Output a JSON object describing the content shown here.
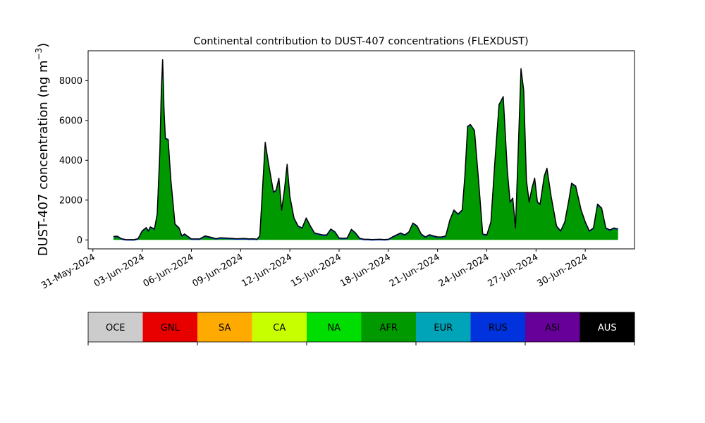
{
  "chart_data": {
    "type": "area",
    "title": "Continental contribution to DUST-407 concentrations (FLEXDUST)",
    "ylabel": "DUST-407 concentration (ng m",
    "ylabel_sup": "−3",
    "ylabel_close": ")",
    "xlim": [
      "2024-05-30T17:00",
      "2024-07-03T00:00"
    ],
    "ylim": [
      -450,
      9500
    ],
    "grid": false,
    "x_ticks": [
      "2024-05-31",
      "2024-06-03",
      "2024-06-06",
      "2024-06-09",
      "2024-06-12",
      "2024-06-15",
      "2024-06-18",
      "2024-06-21",
      "2024-06-24",
      "2024-06-27",
      "2024-06-30"
    ],
    "x_tick_labels": [
      "31-May-2024",
      "03-Jun-2024",
      "06-Jun-2024",
      "09-Jun-2024",
      "12-Jun-2024",
      "15-Jun-2024",
      "18-Jun-2024",
      "21-Jun-2024",
      "24-Jun-2024",
      "27-Jun-2024",
      "30-Jun-2024"
    ],
    "y_ticks": [
      0,
      2000,
      4000,
      6000,
      8000
    ],
    "y_tick_labels": [
      "0",
      "2000",
      "4000",
      "6000",
      "8000"
    ],
    "series_total_color": "#000000",
    "series_total": [
      [
        "2024-06-01T06:00",
        180
      ],
      [
        "2024-06-01T12:00",
        185
      ],
      [
        "2024-06-01T18:00",
        60
      ],
      [
        "2024-06-02T00:00",
        20
      ],
      [
        "2024-06-02T12:00",
        15
      ],
      [
        "2024-06-02T18:00",
        60
      ],
      [
        "2024-06-03T00:00",
        450
      ],
      [
        "2024-06-03T06:00",
        620
      ],
      [
        "2024-06-03T09:00",
        450
      ],
      [
        "2024-06-03T12:00",
        650
      ],
      [
        "2024-06-03T18:00",
        550
      ],
      [
        "2024-06-03T22:00",
        1300
      ],
      [
        "2024-06-04T02:00",
        4500
      ],
      [
        "2024-06-04T04:00",
        7500
      ],
      [
        "2024-06-04T06:00",
        9050
      ],
      [
        "2024-06-04T08:00",
        6500
      ],
      [
        "2024-06-04T10:00",
        5100
      ],
      [
        "2024-06-04T14:00",
        5050
      ],
      [
        "2024-06-04T18:00",
        3000
      ],
      [
        "2024-06-05T00:00",
        800
      ],
      [
        "2024-06-05T06:00",
        600
      ],
      [
        "2024-06-05T10:00",
        200
      ],
      [
        "2024-06-05T14:00",
        300
      ],
      [
        "2024-06-05T20:00",
        150
      ],
      [
        "2024-06-06T00:00",
        50
      ],
      [
        "2024-06-06T12:00",
        50
      ],
      [
        "2024-06-06T20:00",
        200
      ],
      [
        "2024-06-07T06:00",
        120
      ],
      [
        "2024-06-07T12:00",
        60
      ],
      [
        "2024-06-07T18:00",
        110
      ],
      [
        "2024-06-08T06:00",
        90
      ],
      [
        "2024-06-08T18:00",
        60
      ],
      [
        "2024-06-09T06:00",
        70
      ],
      [
        "2024-06-09T12:00",
        50
      ],
      [
        "2024-06-09T18:00",
        60
      ],
      [
        "2024-06-10T00:00",
        40
      ],
      [
        "2024-06-10T04:00",
        200
      ],
      [
        "2024-06-10T08:00",
        2500
      ],
      [
        "2024-06-10T12:00",
        4900
      ],
      [
        "2024-06-10T16:00",
        4000
      ],
      [
        "2024-06-10T20:00",
        3200
      ],
      [
        "2024-06-11T00:00",
        2400
      ],
      [
        "2024-06-11T04:00",
        2500
      ],
      [
        "2024-06-11T08:00",
        3100
      ],
      [
        "2024-06-11T12:00",
        1500
      ],
      [
        "2024-06-11T16:00",
        2500
      ],
      [
        "2024-06-11T20:00",
        3800
      ],
      [
        "2024-06-12T00:00",
        2200
      ],
      [
        "2024-06-12T06:00",
        1100
      ],
      [
        "2024-06-12T12:00",
        700
      ],
      [
        "2024-06-12T18:00",
        600
      ],
      [
        "2024-06-13T00:00",
        1100
      ],
      [
        "2024-06-13T06:00",
        700
      ],
      [
        "2024-06-13T12:00",
        350
      ],
      [
        "2024-06-13T18:00",
        300
      ],
      [
        "2024-06-14T00:00",
        250
      ],
      [
        "2024-06-14T06:00",
        250
      ],
      [
        "2024-06-14T12:00",
        550
      ],
      [
        "2024-06-14T18:00",
        400
      ],
      [
        "2024-06-15T00:00",
        100
      ],
      [
        "2024-06-15T06:00",
        80
      ],
      [
        "2024-06-15T12:00",
        100
      ],
      [
        "2024-06-15T18:00",
        530
      ],
      [
        "2024-06-16T00:00",
        350
      ],
      [
        "2024-06-16T06:00",
        80
      ],
      [
        "2024-06-16T12:00",
        40
      ],
      [
        "2024-06-16T18:00",
        30
      ],
      [
        "2024-06-17T00:00",
        20
      ],
      [
        "2024-06-17T12:00",
        30
      ],
      [
        "2024-06-17T18:00",
        20
      ],
      [
        "2024-06-18T00:00",
        30
      ],
      [
        "2024-06-18T06:00",
        150
      ],
      [
        "2024-06-18T12:00",
        250
      ],
      [
        "2024-06-18T18:00",
        350
      ],
      [
        "2024-06-19T00:00",
        250
      ],
      [
        "2024-06-19T06:00",
        400
      ],
      [
        "2024-06-19T12:00",
        850
      ],
      [
        "2024-06-19T18:00",
        700
      ],
      [
        "2024-06-20T00:00",
        300
      ],
      [
        "2024-06-20T06:00",
        150
      ],
      [
        "2024-06-20T12:00",
        260
      ],
      [
        "2024-06-20T18:00",
        200
      ],
      [
        "2024-06-21T00:00",
        150
      ],
      [
        "2024-06-21T06:00",
        150
      ],
      [
        "2024-06-21T12:00",
        200
      ],
      [
        "2024-06-21T18:00",
        1000
      ],
      [
        "2024-06-22T00:00",
        1500
      ],
      [
        "2024-06-22T06:00",
        1300
      ],
      [
        "2024-06-22T12:00",
        1500
      ],
      [
        "2024-06-22T16:00",
        3200
      ],
      [
        "2024-06-22T20:00",
        5700
      ],
      [
        "2024-06-23T00:00",
        5800
      ],
      [
        "2024-06-23T06:00",
        5500
      ],
      [
        "2024-06-23T12:00",
        3000
      ],
      [
        "2024-06-23T18:00",
        300
      ],
      [
        "2024-06-24T00:00",
        250
      ],
      [
        "2024-06-24T06:00",
        900
      ],
      [
        "2024-06-24T12:00",
        4000
      ],
      [
        "2024-06-24T18:00",
        6800
      ],
      [
        "2024-06-25T00:00",
        7200
      ],
      [
        "2024-06-25T06:00",
        3500
      ],
      [
        "2024-06-25T10:00",
        1900
      ],
      [
        "2024-06-25T14:00",
        2100
      ],
      [
        "2024-06-25T18:00",
        600
      ],
      [
        "2024-06-25T22:00",
        4500
      ],
      [
        "2024-06-26T02:00",
        8600
      ],
      [
        "2024-06-26T06:00",
        7500
      ],
      [
        "2024-06-26T10:00",
        3000
      ],
      [
        "2024-06-26T14:00",
        1900
      ],
      [
        "2024-06-26T18:00",
        2600
      ],
      [
        "2024-06-26T22:00",
        3100
      ],
      [
        "2024-06-27T02:00",
        1900
      ],
      [
        "2024-06-27T06:00",
        1800
      ],
      [
        "2024-06-27T12:00",
        3200
      ],
      [
        "2024-06-27T16:00",
        3600
      ],
      [
        "2024-06-27T22:00",
        2200
      ],
      [
        "2024-06-28T06:00",
        700
      ],
      [
        "2024-06-28T12:00",
        450
      ],
      [
        "2024-06-28T18:00",
        900
      ],
      [
        "2024-06-29T00:00",
        2000
      ],
      [
        "2024-06-29T04:00",
        2850
      ],
      [
        "2024-06-29T10:00",
        2700
      ],
      [
        "2024-06-29T18:00",
        1500
      ],
      [
        "2024-06-30T00:00",
        900
      ],
      [
        "2024-06-30T06:00",
        450
      ],
      [
        "2024-06-30T12:00",
        600
      ],
      [
        "2024-06-30T18:00",
        1800
      ],
      [
        "2024-07-01T00:00",
        1600
      ],
      [
        "2024-07-01T06:00",
        600
      ],
      [
        "2024-07-01T12:00",
        500
      ],
      [
        "2024-07-01T18:00",
        600
      ],
      [
        "2024-07-02T00:00",
        550
      ]
    ],
    "legend_placement": "bottom",
    "legend": [
      {
        "label": "OCE",
        "color": "#cccccc",
        "text_color": "#000000"
      },
      {
        "label": "GNL",
        "color": "#e80000",
        "text_color": "#000000"
      },
      {
        "label": "SA",
        "color": "#ffaa00",
        "text_color": "#000000"
      },
      {
        "label": "CA",
        "color": "#c8ff00",
        "text_color": "#000000"
      },
      {
        "label": "NA",
        "color": "#00dd00",
        "text_color": "#000000"
      },
      {
        "label": "AFR",
        "color": "#009900",
        "text_color": "#000000"
      },
      {
        "label": "EUR",
        "color": "#00a4b8",
        "text_color": "#000000"
      },
      {
        "label": "RUS",
        "color": "#0033dd",
        "text_color": "#000000"
      },
      {
        "label": "ASI",
        "color": "#660099",
        "text_color": "#000000"
      },
      {
        "label": "AUS",
        "color": "#000000",
        "text_color": "#ffffff"
      }
    ],
    "dominant_series_color": "#009900"
  }
}
